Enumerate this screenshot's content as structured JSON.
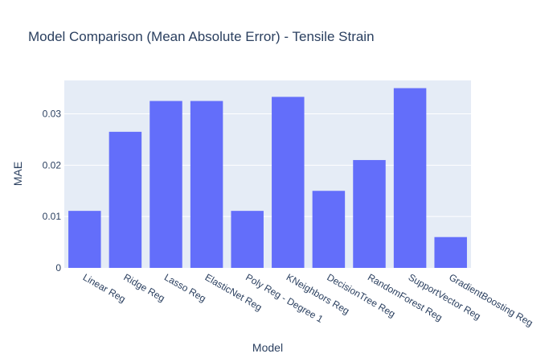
{
  "chart_data": {
    "type": "bar",
    "title": "Model Comparison (Mean Absolute Error) - Tensile Strain",
    "xlabel": "Model",
    "ylabel": "MAE",
    "categories": [
      "Linear Reg",
      "Ridge Reg",
      "Lasso Reg",
      "ElasticNet Reg",
      "Poly Reg - Degree 1",
      "KNeighbors Reg",
      "DecisionTree Reg",
      "RandomForest Reg",
      "SupportVector Reg",
      "GradientBoosting Reg"
    ],
    "values": [
      0.0111,
      0.0265,
      0.0325,
      0.0325,
      0.0111,
      0.0333,
      0.015,
      0.021,
      0.035,
      0.006
    ],
    "ylim": [
      0,
      0.0365
    ],
    "yticks": [
      0,
      0.01,
      0.02,
      0.03
    ],
    "ytick_labels": [
      "0",
      "0.01",
      "0.02",
      "0.03"
    ],
    "grid": true,
    "colors": {
      "bar": "#636efa",
      "plot_bg": "#e5ecf6",
      "grid": "#ffffff",
      "text": "#2a3f5f"
    }
  }
}
